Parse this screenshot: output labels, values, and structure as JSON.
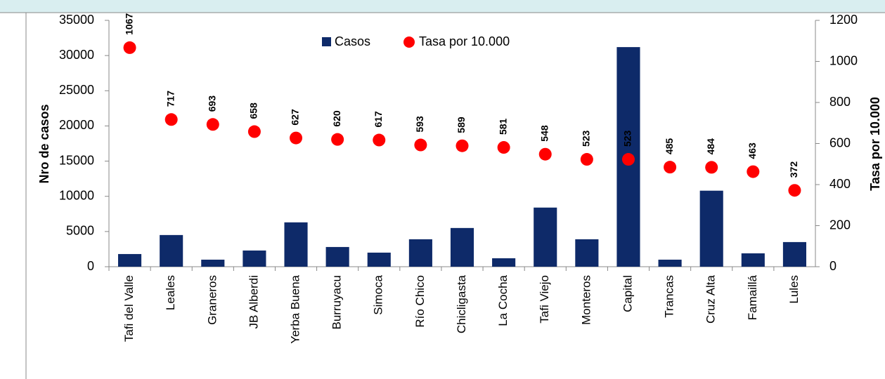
{
  "chart_data": {
    "type": "bar-dot",
    "ylabel": "Nro de casos",
    "y2label": "Tasa por 10.000",
    "categories": [
      "Tafi del Valle",
      "Leales",
      "Graneros",
      "JB Alberdi",
      "Yerba Buena",
      "Burruyacu",
      "Simoca",
      "Río Chico",
      "Chicligasta",
      "La Cocha",
      "Tafi Viejo",
      "Monteros",
      "Capital",
      "Trancas",
      "Cruz Alta",
      "Famaillá",
      "Lules"
    ],
    "series": [
      {
        "name": "Casos",
        "color": "#0e2a69",
        "values": [
          1800,
          4500,
          1000,
          2300,
          6300,
          2800,
          2000,
          3900,
          5500,
          1200,
          8400,
          3900,
          31200,
          1000,
          10800,
          1900,
          3500
        ]
      },
      {
        "name": "Tasa por 10.000",
        "color": "#ff0000",
        "axis": "y2",
        "values": [
          1067,
          717,
          693,
          658,
          627,
          620,
          617,
          593,
          589,
          581,
          548,
          523,
          523,
          485,
          484,
          463,
          372
        ]
      }
    ],
    "ylim": [
      0,
      35000
    ],
    "yticks": [
      0,
      5000,
      10000,
      15000,
      20000,
      25000,
      30000,
      35000
    ],
    "y2lim": [
      0,
      1200
    ],
    "y2ticks": [
      0,
      200,
      400,
      600,
      800,
      1000,
      1200
    ]
  }
}
